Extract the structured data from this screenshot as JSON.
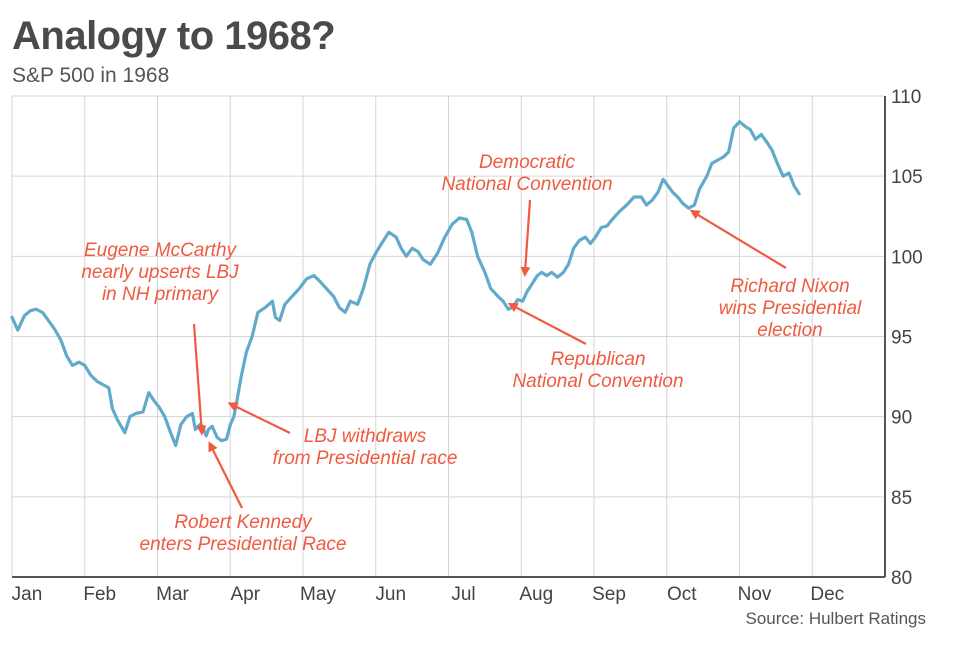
{
  "chart_data": {
    "type": "line",
    "title": "Analogy to 1968?",
    "subtitle": "S&P 500 in 1968",
    "source": "Source: Hulbert Ratings",
    "x_label": "",
    "y_label": "",
    "ylim": [
      80,
      110
    ],
    "yticks": [
      80,
      85,
      90,
      95,
      100,
      105,
      110
    ],
    "months": [
      "Jan",
      "Feb",
      "Mar",
      "Apr",
      "May",
      "Jun",
      "Jul",
      "Aug",
      "Sep",
      "Oct",
      "Nov",
      "Dec"
    ],
    "line_color": "#62aacb",
    "annotation_color": "#f05a40",
    "series": [
      {
        "name": "S&P 500",
        "points": [
          [
            0.0,
            96.2
          ],
          [
            0.08,
            95.4
          ],
          [
            0.17,
            96.3
          ],
          [
            0.25,
            96.6
          ],
          [
            0.33,
            96.7
          ],
          [
            0.42,
            96.5
          ],
          [
            0.5,
            96.0
          ],
          [
            0.58,
            95.5
          ],
          [
            0.67,
            94.8
          ],
          [
            0.75,
            93.8
          ],
          [
            0.83,
            93.2
          ],
          [
            0.92,
            93.4
          ],
          [
            1.0,
            93.2
          ],
          [
            1.08,
            92.6
          ],
          [
            1.17,
            92.2
          ],
          [
            1.25,
            92.0
          ],
          [
            1.33,
            91.8
          ],
          [
            1.38,
            90.5
          ],
          [
            1.45,
            89.8
          ],
          [
            1.55,
            89.0
          ],
          [
            1.62,
            90.0
          ],
          [
            1.7,
            90.2
          ],
          [
            1.8,
            90.3
          ],
          [
            1.88,
            91.5
          ],
          [
            1.95,
            91.0
          ],
          [
            2.02,
            90.6
          ],
          [
            2.1,
            90.0
          ],
          [
            2.18,
            89.0
          ],
          [
            2.25,
            88.2
          ],
          [
            2.32,
            89.5
          ],
          [
            2.4,
            90.0
          ],
          [
            2.48,
            90.2
          ],
          [
            2.52,
            89.2
          ],
          [
            2.58,
            89.5
          ],
          [
            2.62,
            89.4
          ],
          [
            2.67,
            88.8
          ],
          [
            2.7,
            89.2
          ],
          [
            2.75,
            89.4
          ],
          [
            2.82,
            88.7
          ],
          [
            2.88,
            88.5
          ],
          [
            2.95,
            88.6
          ],
          [
            3.0,
            89.5
          ],
          [
            3.05,
            90.0
          ],
          [
            3.1,
            91.2
          ],
          [
            3.15,
            92.5
          ],
          [
            3.22,
            94.0
          ],
          [
            3.3,
            95.0
          ],
          [
            3.38,
            96.5
          ],
          [
            3.48,
            96.8
          ],
          [
            3.58,
            97.2
          ],
          [
            3.62,
            96.2
          ],
          [
            3.68,
            96.0
          ],
          [
            3.75,
            97.0
          ],
          [
            3.85,
            97.5
          ],
          [
            3.95,
            98.0
          ],
          [
            4.05,
            98.6
          ],
          [
            4.15,
            98.8
          ],
          [
            4.22,
            98.5
          ],
          [
            4.32,
            98.0
          ],
          [
            4.42,
            97.5
          ],
          [
            4.5,
            96.8
          ],
          [
            4.58,
            96.5
          ],
          [
            4.65,
            97.2
          ],
          [
            4.75,
            97.0
          ],
          [
            4.83,
            98.0
          ],
          [
            4.92,
            99.5
          ],
          [
            5.0,
            100.2
          ],
          [
            5.08,
            100.8
          ],
          [
            5.18,
            101.5
          ],
          [
            5.28,
            101.2
          ],
          [
            5.35,
            100.5
          ],
          [
            5.42,
            100.0
          ],
          [
            5.5,
            100.5
          ],
          [
            5.58,
            100.3
          ],
          [
            5.65,
            99.8
          ],
          [
            5.75,
            99.5
          ],
          [
            5.85,
            100.2
          ],
          [
            5.95,
            101.2
          ],
          [
            6.05,
            102.0
          ],
          [
            6.15,
            102.4
          ],
          [
            6.25,
            102.3
          ],
          [
            6.32,
            101.5
          ],
          [
            6.4,
            100.0
          ],
          [
            6.5,
            99.0
          ],
          [
            6.58,
            98.0
          ],
          [
            6.68,
            97.5
          ],
          [
            6.75,
            97.2
          ],
          [
            6.82,
            96.7
          ],
          [
            6.88,
            96.8
          ],
          [
            6.95,
            97.3
          ],
          [
            7.02,
            97.2
          ],
          [
            7.08,
            97.8
          ],
          [
            7.15,
            98.3
          ],
          [
            7.22,
            98.8
          ],
          [
            7.28,
            99.0
          ],
          [
            7.35,
            98.8
          ],
          [
            7.42,
            99.0
          ],
          [
            7.5,
            98.7
          ],
          [
            7.58,
            99.0
          ],
          [
            7.65,
            99.5
          ],
          [
            7.72,
            100.5
          ],
          [
            7.8,
            101.0
          ],
          [
            7.88,
            101.2
          ],
          [
            7.95,
            100.8
          ],
          [
            8.02,
            101.2
          ],
          [
            8.1,
            101.8
          ],
          [
            8.18,
            101.9
          ],
          [
            8.25,
            102.3
          ],
          [
            8.35,
            102.8
          ],
          [
            8.45,
            103.2
          ],
          [
            8.55,
            103.7
          ],
          [
            8.65,
            103.7
          ],
          [
            8.72,
            103.2
          ],
          [
            8.8,
            103.5
          ],
          [
            8.88,
            104.0
          ],
          [
            8.95,
            104.8
          ],
          [
            9.0,
            104.5
          ],
          [
            9.08,
            104.0
          ],
          [
            9.15,
            103.7
          ],
          [
            9.22,
            103.3
          ],
          [
            9.3,
            103.0
          ],
          [
            9.38,
            103.2
          ],
          [
            9.45,
            104.2
          ],
          [
            9.55,
            105.0
          ],
          [
            9.62,
            105.8
          ],
          [
            9.7,
            106.0
          ],
          [
            9.78,
            106.2
          ],
          [
            9.85,
            106.5
          ],
          [
            9.92,
            108.0
          ],
          [
            10.0,
            108.4
          ],
          [
            10.08,
            108.1
          ],
          [
            10.15,
            107.9
          ],
          [
            10.22,
            107.3
          ],
          [
            10.3,
            107.6
          ],
          [
            10.38,
            107.1
          ],
          [
            10.45,
            106.6
          ],
          [
            10.52,
            105.8
          ],
          [
            10.6,
            105.0
          ],
          [
            10.68,
            105.2
          ],
          [
            10.75,
            104.4
          ],
          [
            10.82,
            103.9
          ]
        ]
      }
    ],
    "annotations": [
      {
        "lines": [
          "Eugene McCarthy",
          "nearly upserts LBJ",
          "in NH primary"
        ],
        "target": [
          2.61,
          89.0
        ]
      },
      {
        "lines": [
          "Robert Kennedy",
          "enters Presidential Race"
        ],
        "target": [
          2.72,
          88.3
        ]
      },
      {
        "lines": [
          "LBJ withdraws",
          "from Presidential race"
        ],
        "target": [
          3.0,
          90.8
        ]
      },
      {
        "lines": [
          "Democratic",
          "National Convention"
        ],
        "target": [
          7.05,
          98.9
        ]
      },
      {
        "lines": [
          "Republican",
          "National Convention"
        ],
        "target": [
          6.85,
          97.0
        ]
      },
      {
        "lines": [
          "Richard Nixon",
          "wins Presidential",
          "election"
        ],
        "target": [
          9.35,
          102.8
        ]
      }
    ]
  }
}
